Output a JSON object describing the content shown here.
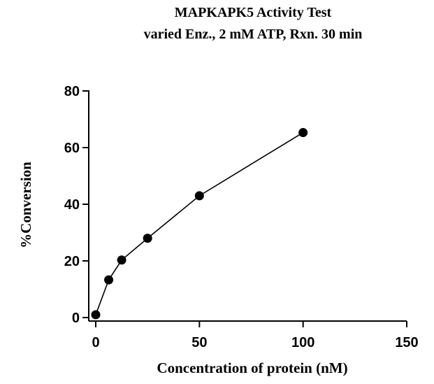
{
  "chart_data": {
    "type": "line",
    "title": "MAPKAPK5 Activity Test",
    "subtitle": "varied Enz., 2 mM ATP, Rxn. 30 min",
    "xlabel": "Concentration of protein (nM)",
    "ylabel": "%Conversion",
    "xlim": [
      0,
      150
    ],
    "ylim": [
      0,
      80
    ],
    "xticks": [
      0,
      50,
      100,
      150
    ],
    "yticks": [
      0,
      20,
      40,
      60,
      80
    ],
    "grid": false,
    "series": [
      {
        "x": [
          0,
          6.25,
          12.5,
          25,
          50,
          100
        ],
        "y": [
          1,
          13.3,
          20.3,
          28.0,
          43.0,
          65.3
        ],
        "marker": "circle",
        "color": "#000000"
      }
    ]
  }
}
